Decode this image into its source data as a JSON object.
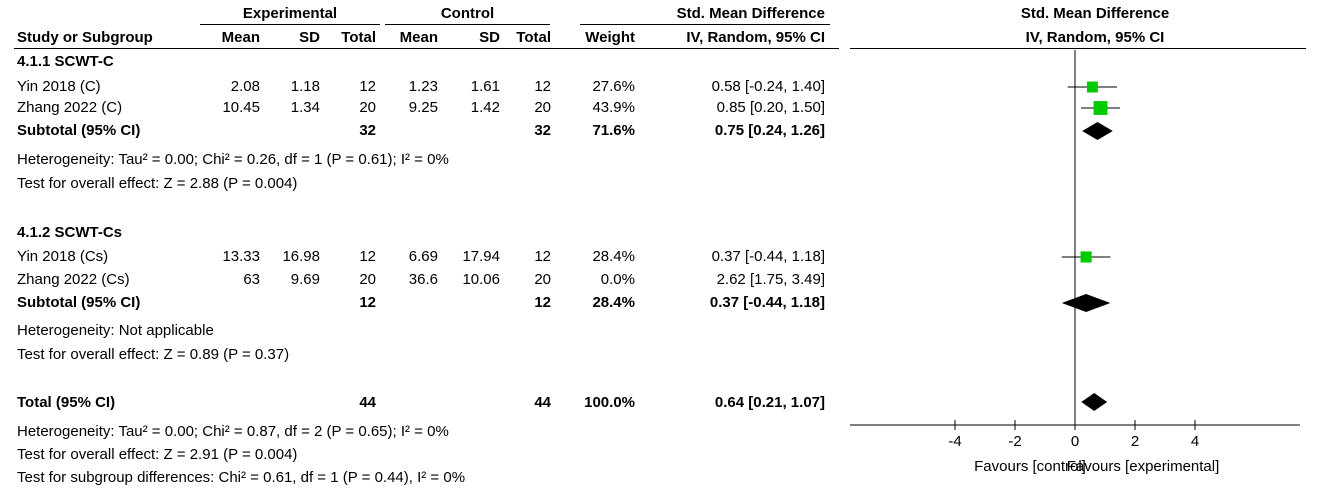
{
  "headers": {
    "experimental": "Experimental",
    "control": "Control",
    "smd": "Std. Mean Difference",
    "plot_title": "Std. Mean Difference",
    "plot_subtitle": "IV, Random, 95% CI",
    "study": "Study or Subgroup",
    "mean": "Mean",
    "sd": "SD",
    "total": "Total",
    "weight": "Weight",
    "method": "IV, Random, 95% CI"
  },
  "groups": [
    {
      "title": "4.1.1 SCWT-C",
      "studies": [
        {
          "name": "Yin 2018 (C)",
          "e_mean": "2.08",
          "e_sd": "1.18",
          "e_n": "12",
          "c_mean": "1.23",
          "c_sd": "1.61",
          "c_n": "12",
          "weight": "27.6%",
          "ci": "0.58 [-0.24, 1.40]"
        },
        {
          "name": "Zhang 2022 (C)",
          "e_mean": "10.45",
          "e_sd": "1.34",
          "e_n": "20",
          "c_mean": "9.25",
          "c_sd": "1.42",
          "c_n": "20",
          "weight": "43.9%",
          "ci": "0.85 [0.20, 1.50]"
        }
      ],
      "subtotal": {
        "label": "Subtotal (95% CI)",
        "e_n": "32",
        "c_n": "32",
        "weight": "71.6%",
        "ci": "0.75 [0.24, 1.26]"
      },
      "heterogeneity": "Heterogeneity: Tau² = 0.00; Chi² = 0.26, df = 1 (P = 0.61); I² = 0%",
      "overall": "Test for overall effect: Z = 2.88 (P = 0.004)"
    },
    {
      "title": "4.1.2 SCWT-Cs",
      "studies": [
        {
          "name": "Yin 2018 (Cs)",
          "e_mean": "13.33",
          "e_sd": "16.98",
          "e_n": "12",
          "c_mean": "6.69",
          "c_sd": "17.94",
          "c_n": "12",
          "weight": "28.4%",
          "ci": "0.37 [-0.44, 1.18]"
        },
        {
          "name": "Zhang 2022 (Cs)",
          "e_mean": "63",
          "e_sd": "9.69",
          "e_n": "20",
          "c_mean": "36.6",
          "c_sd": "10.06",
          "c_n": "20",
          "weight": "0.0%",
          "ci": "2.62 [1.75, 3.49]"
        }
      ],
      "subtotal": {
        "label": "Subtotal (95% CI)",
        "e_n": "12",
        "c_n": "12",
        "weight": "28.4%",
        "ci": "0.37 [-0.44, 1.18]"
      },
      "heterogeneity": "Heterogeneity: Not applicable",
      "overall": "Test for overall effect: Z = 0.89 (P = 0.37)"
    }
  ],
  "total": {
    "label": "Total (95% CI)",
    "e_n": "44",
    "c_n": "44",
    "weight": "100.0%",
    "ci": "0.64 [0.21, 1.07]",
    "heterogeneity": "Heterogeneity: Tau² = 0.00; Chi² = 0.87, df = 2 (P = 0.65); I² = 0%",
    "overall": "Test for overall effect: Z = 2.91 (P = 0.004)",
    "subgroup": "Test for subgroup differences: Chi² = 0.61, df = 1 (P = 0.44), I² = 0%"
  },
  "colors": {
    "marker": "#00cc00",
    "diamond": "#000000",
    "line": "#000000"
  },
  "chart_data": {
    "type": "forest",
    "xlim": [
      -4,
      4
    ],
    "ticks": [
      -4,
      -2,
      0,
      2,
      4
    ],
    "tick_labels": [
      "-4",
      "-2",
      "0",
      "2",
      "4"
    ],
    "favours_left": "Favours [control]",
    "favours_right": "Favours [experimental]",
    "studies": [
      {
        "name": "Yin 2018 (C)",
        "estimate": 0.58,
        "lower": -0.24,
        "upper": 1.4,
        "weight": 27.6
      },
      {
        "name": "Zhang 2022 (C)",
        "estimate": 0.85,
        "lower": 0.2,
        "upper": 1.5,
        "weight": 43.9
      },
      {
        "name": "Yin 2018 (Cs)",
        "estimate": 0.37,
        "lower": -0.44,
        "upper": 1.18,
        "weight": 28.4
      },
      {
        "name": "Zhang 2022 (Cs)",
        "estimate": 2.62,
        "lower": 1.75,
        "upper": 3.49,
        "weight": 0.0
      }
    ],
    "diamonds": [
      {
        "name": "Subtotal 4.1.1",
        "estimate": 0.75,
        "lower": 0.24,
        "upper": 1.26
      },
      {
        "name": "Subtotal 4.1.2",
        "estimate": 0.37,
        "lower": -0.44,
        "upper": 1.18
      },
      {
        "name": "Total",
        "estimate": 0.64,
        "lower": 0.21,
        "upper": 1.07
      }
    ]
  }
}
